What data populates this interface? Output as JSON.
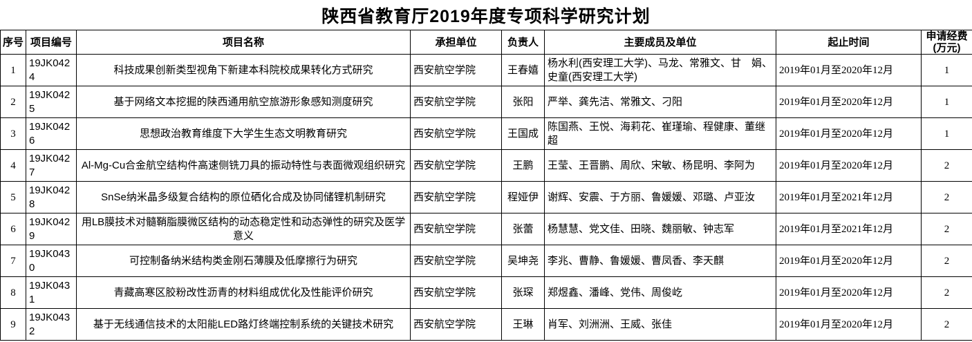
{
  "title": "陕西省教育厅2019年度专项科学研究计划",
  "table": {
    "columns": [
      {
        "key": "index",
        "label": "序号"
      },
      {
        "key": "code",
        "label": "项目编号"
      },
      {
        "key": "name",
        "label": "项目名称"
      },
      {
        "key": "unit",
        "label": "承担单位"
      },
      {
        "key": "leader",
        "label": "负责人"
      },
      {
        "key": "members",
        "label": "主要成员及单位"
      },
      {
        "key": "period",
        "label": "起止时间"
      },
      {
        "key": "funding",
        "label": "申请经费(万元)"
      }
    ],
    "rows": [
      {
        "index": "1",
        "code": "19JK0424",
        "name": "科技成果创新类型视角下新建本科院校成果转化方式研究",
        "unit": "西安航空学院",
        "leader": "王春嬉",
        "members": "杨水利(西安理工大学)、马龙、常雅文、甘　娟、史童(西安理工大学)",
        "period": "2019年01月至2020年12月",
        "funding": "1"
      },
      {
        "index": "2",
        "code": "19JK0425",
        "name": "基于网络文本挖掘的陕西通用航空旅游形象感知测度研究",
        "unit": "西安航空学院",
        "leader": "张阳",
        "members": "严举、龚先洁、常雅文、刁阳",
        "period": "2019年01月至2020年12月",
        "funding": "1"
      },
      {
        "index": "3",
        "code": "19JK0426",
        "name": "思想政治教育维度下大学生生态文明教育研究",
        "unit": "西安航空学院",
        "leader": "王国成",
        "members": "陈国燕、王悦、海莉花、崔瑾瑜、程健康、董继超",
        "period": "2019年01月至2020年12月",
        "funding": "1"
      },
      {
        "index": "4",
        "code": "19JK0427",
        "name": "Al-Mg-Cu合金航空结构件高速侧铣刀具的振动特性与表面微观组织研究",
        "unit": "西安航空学院",
        "leader": "王鹏",
        "members": "王莹、王晋鹏、周欣、宋敏、杨昆明、李阿为",
        "period": "2019年01月至2020年12月",
        "funding": "2"
      },
      {
        "index": "5",
        "code": "19JK0428",
        "name": "SnSe纳米晶多级复合结构的原位硒化合成及协同储锂机制研究",
        "unit": "西安航空学院",
        "leader": "程娅伊",
        "members": "谢辉、安震、于方丽、鲁媛媛、邓璐、卢亚汝",
        "period": "2019年01月至2021年12月",
        "funding": "2"
      },
      {
        "index": "6",
        "code": "19JK0429",
        "name": "用LB膜技术对髓鞘脂膜微区结构的动态稳定性和动态弹性的研究及医学意义",
        "unit": "西安航空学院",
        "leader": "张蕾",
        "members": "杨慧慧、党文佳、田晓、魏丽敏、钟志军",
        "period": "2019年01月至2021年12月",
        "funding": "2"
      },
      {
        "index": "7",
        "code": "19JK0430",
        "name": "可控制备纳米结构类金刚石薄膜及低摩擦行为研究",
        "unit": "西安航空学院",
        "leader": "吴坤尧",
        "members": "李兆、曹静、鲁媛媛、曹凤香、李天麒",
        "period": "2019年01月至2020年12月",
        "funding": "2"
      },
      {
        "index": "8",
        "code": "19JK0431",
        "name": "青藏高寒区胶粉改性沥青的材料组成优化及性能评价研究",
        "unit": "西安航空学院",
        "leader": "张琛",
        "members": "郑煜鑫、潘峰、党伟、周俊屹",
        "period": "2019年01月至2020年12月",
        "funding": "2"
      },
      {
        "index": "9",
        "code": "19JK0432",
        "name": "基于无线通信技术的太阳能LED路灯终端控制系统的关键技术研究",
        "unit": "西安航空学院",
        "leader": "王琳",
        "members": "肖军、刘洲洲、王威、张佳",
        "period": "2019年01月至2020年12月",
        "funding": "2"
      }
    ]
  }
}
